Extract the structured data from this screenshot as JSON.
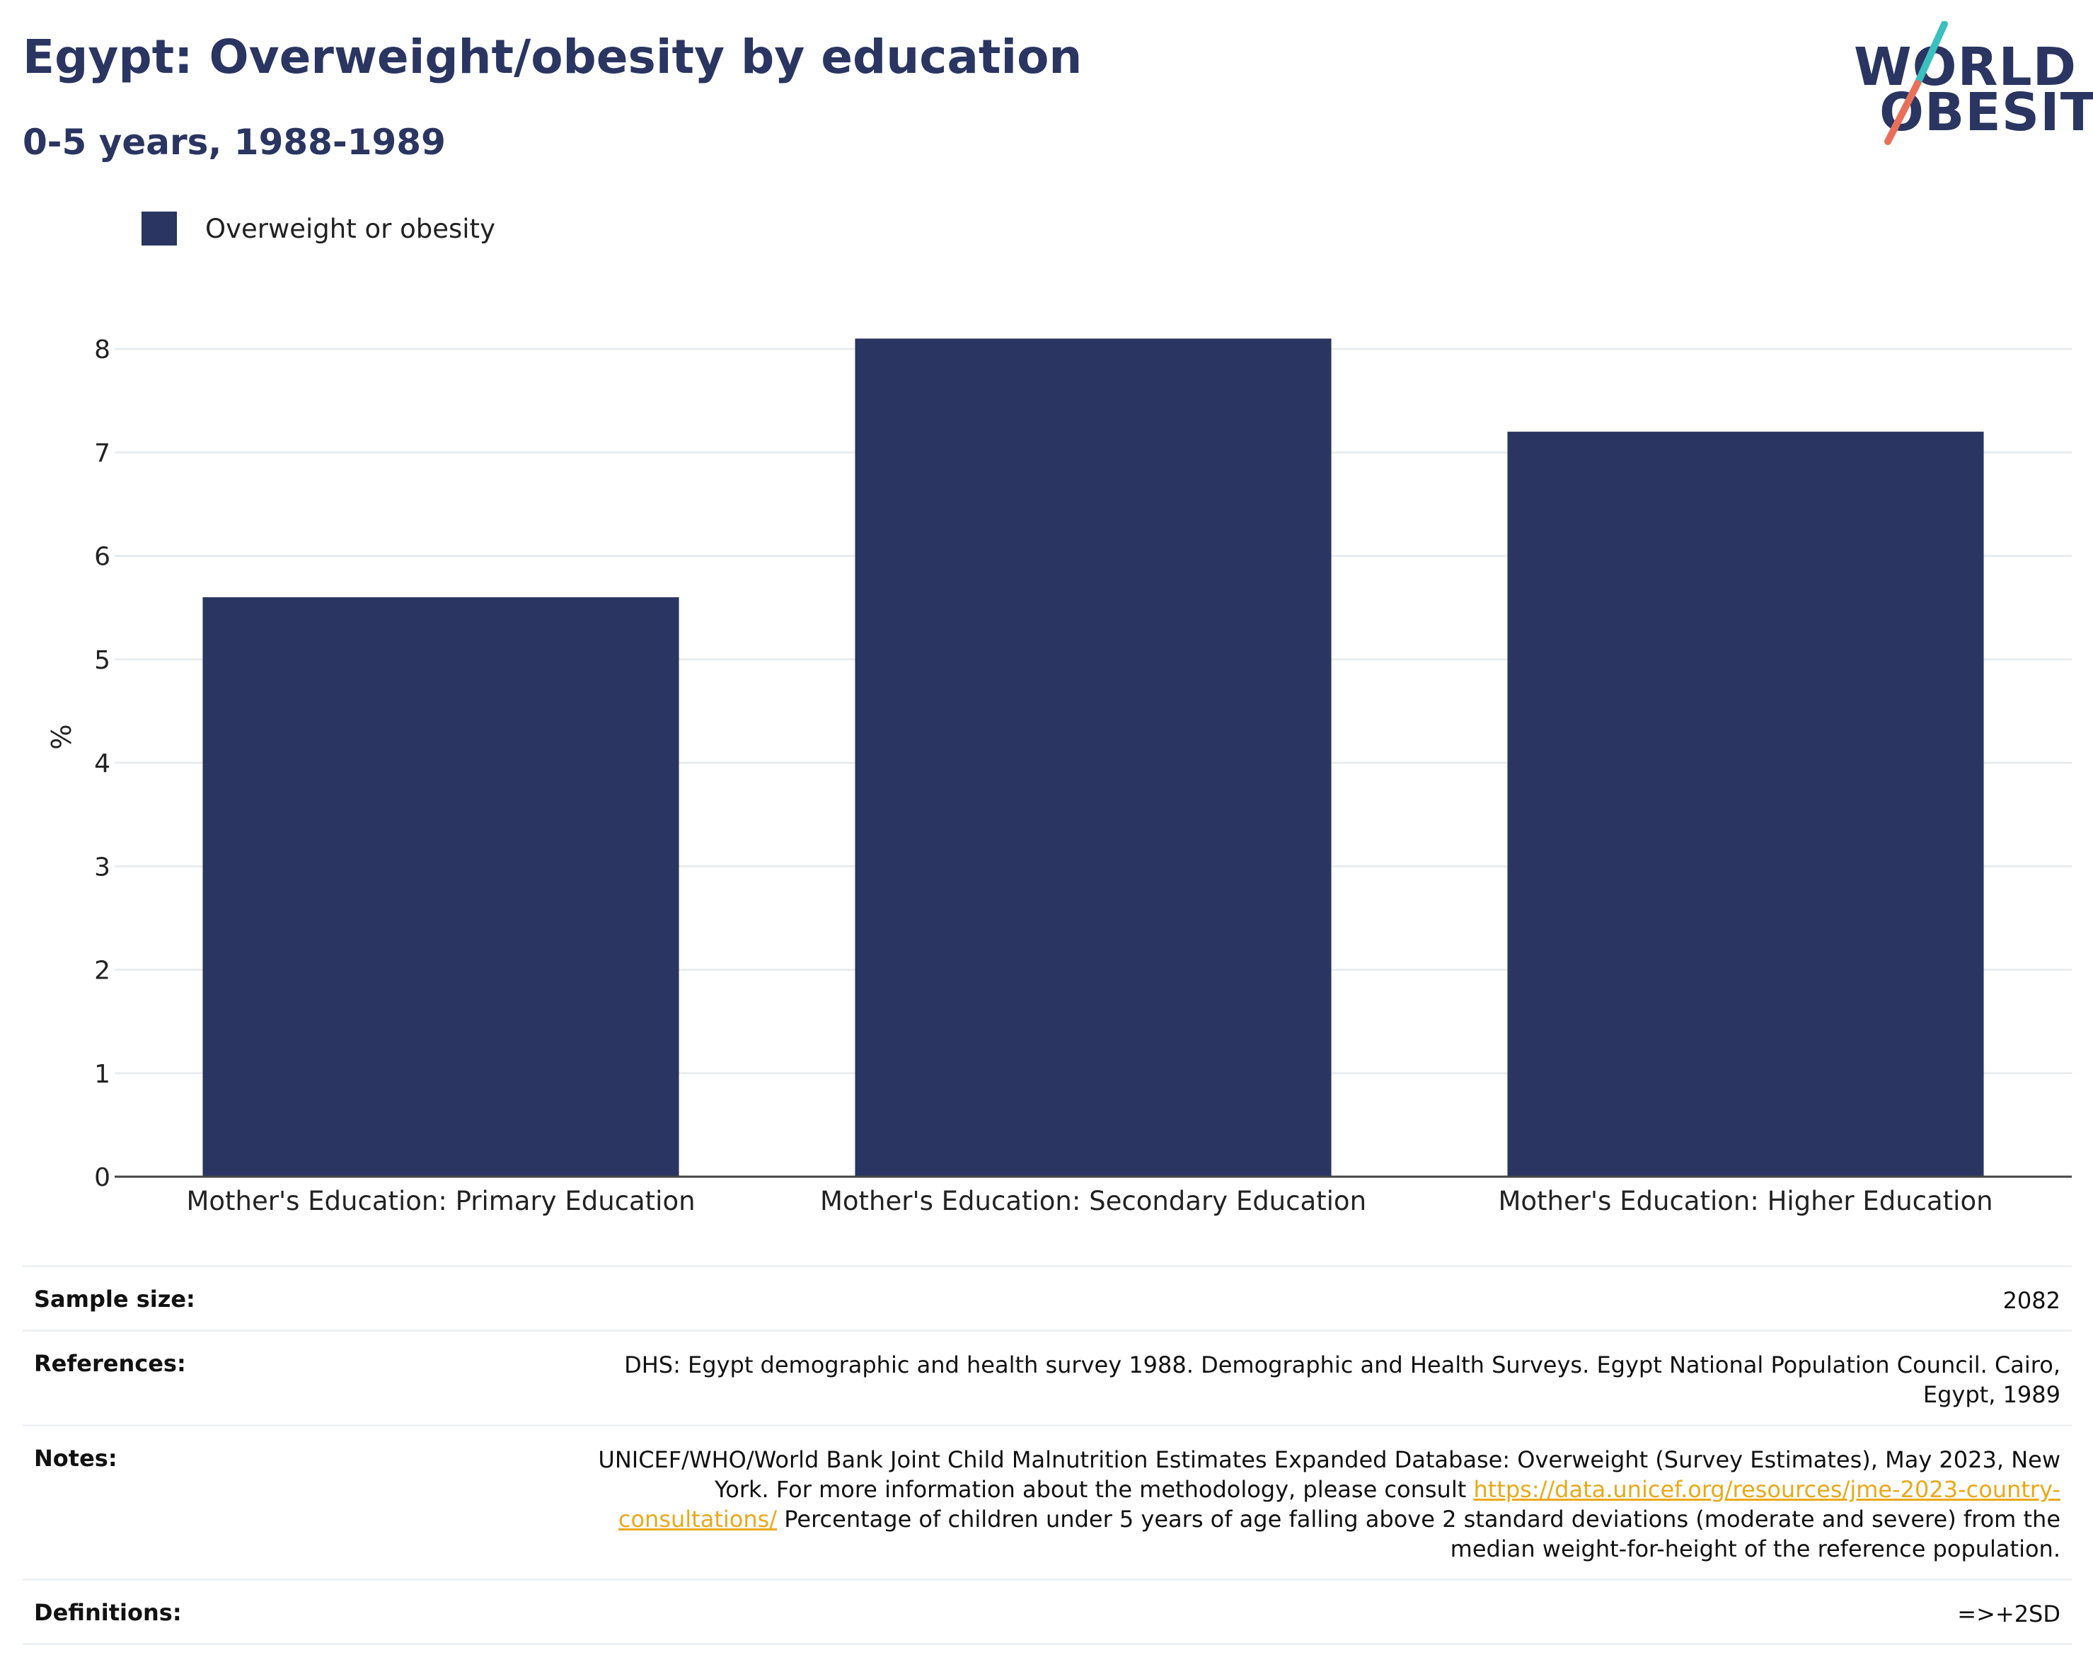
{
  "header": {
    "title": "Egypt: Overweight/obesity by education",
    "subtitle": "0-5 years, 1988-1989"
  },
  "logo": {
    "line1": "WORLD",
    "line2": "OBESITY",
    "colors": {
      "text": "#2a3561",
      "slash_top": "#3bbfbf",
      "slash_bottom": "#e8705a"
    }
  },
  "chart_data": {
    "type": "bar",
    "title": "Egypt: Overweight/obesity by education",
    "subtitle": "0-5 years, 1988-1989",
    "categories": [
      "Mother's Education: Primary Education",
      "Mother's Education: Secondary Education",
      "Mother's Education: Higher Education"
    ],
    "series": [
      {
        "name": "Overweight or obesity",
        "values": [
          5.6,
          8.1,
          7.2
        ],
        "color": "#2a3561"
      }
    ],
    "xlabel": "",
    "ylabel": "%",
    "ylim": [
      0,
      8.5
    ],
    "yticks": [
      0,
      1,
      2,
      3,
      4,
      5,
      6,
      7,
      8
    ],
    "grid": true,
    "legend": "top-left"
  },
  "info": {
    "sample_size": {
      "label": "Sample size:",
      "value": "2082"
    },
    "references": {
      "label": "References:",
      "value": "DHS: Egypt demographic and health survey 1988. Demographic and Health Surveys. Egypt National Population Council. Cairo, Egypt, 1989"
    },
    "notes": {
      "label": "Notes:",
      "text_before": "UNICEF/WHO/World Bank Joint Child Malnutrition Estimates Expanded Database: Overweight (Survey Estimates), May 2023, New York. For more information about the methodology, please consult",
      "link": "https://data.unicef.org/resources/jme-2023-country-consultations/",
      "text_after": "Percentage of children under 5 years of age falling above 2 standard deviations (moderate and severe) from the median weight-for-height of the reference population."
    },
    "definitions": {
      "label": "Definitions:",
      "value": "=>+2SD"
    }
  }
}
